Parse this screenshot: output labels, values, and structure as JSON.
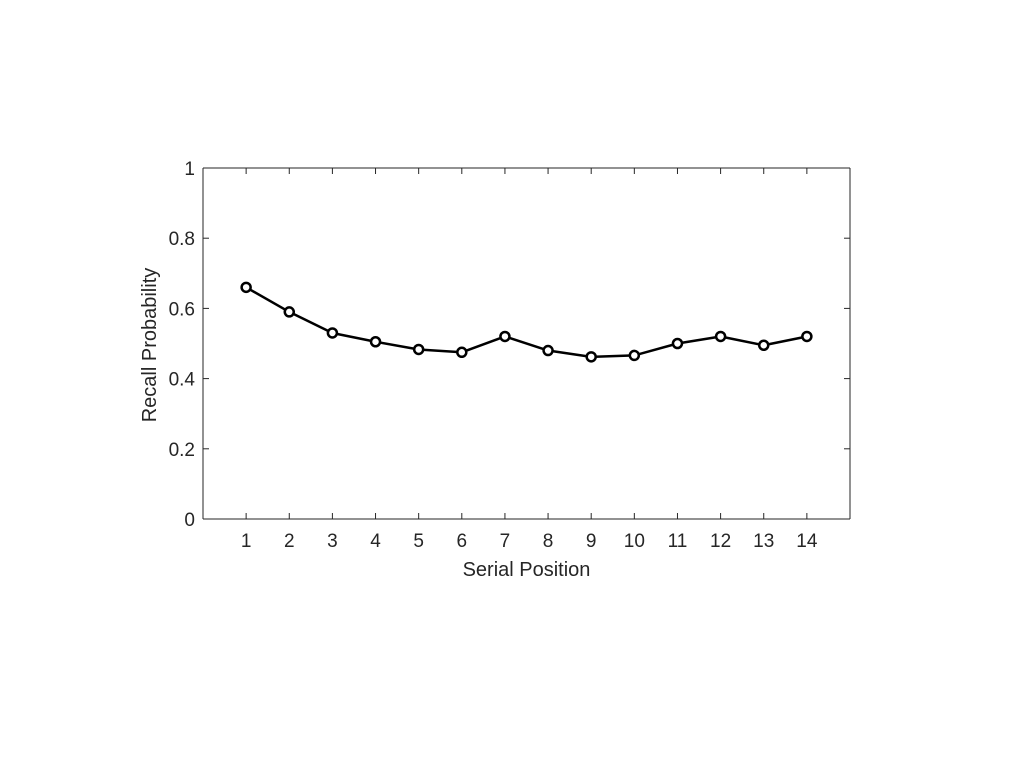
{
  "chart_data": {
    "type": "line",
    "title": "",
    "xlabel": "Serial Position",
    "ylabel": "Recall Probability",
    "x": [
      1,
      2,
      3,
      4,
      5,
      6,
      7,
      8,
      9,
      10,
      11,
      12,
      13,
      14
    ],
    "xlim": [
      0,
      15
    ],
    "ylim": [
      0,
      1
    ],
    "yticks": [
      "0",
      "0.2",
      "0.4",
      "0.6",
      "0.8",
      "1"
    ],
    "xticks": [
      "1",
      "2",
      "3",
      "4",
      "5",
      "6",
      "7",
      "8",
      "9",
      "10",
      "11",
      "12",
      "13",
      "14"
    ],
    "grid": false,
    "legend": "none",
    "series": [
      {
        "values": [
          0.66,
          0.59,
          0.53,
          0.505,
          0.483,
          0.475,
          0.52,
          0.48,
          0.462,
          0.466,
          0.5,
          0.52,
          0.495,
          0.52
        ],
        "color": "#000000",
        "marker": "open-circle"
      }
    ]
  }
}
